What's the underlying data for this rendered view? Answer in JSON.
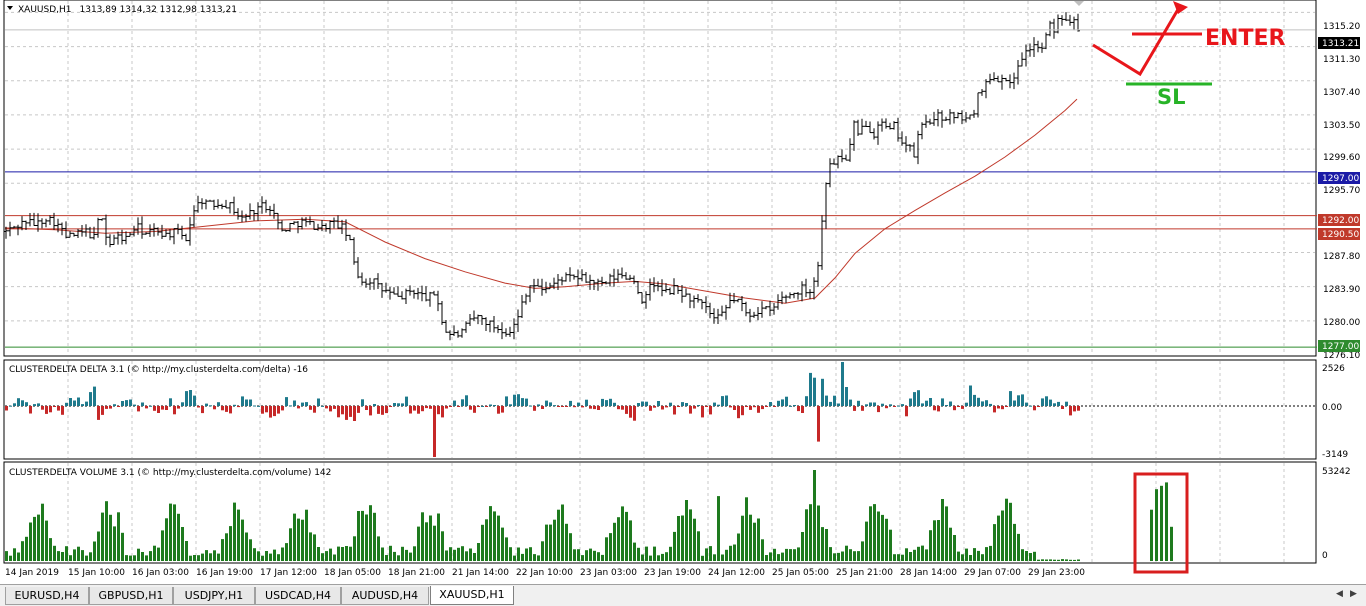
{
  "main_header": {
    "title": "XAUUSD,H1",
    "ohlc": "1313,89 1314,32 1312,98 1313,21"
  },
  "price_axis": {
    "ticks": [
      "1315.20",
      "1311.30",
      "1307.40",
      "1303.50",
      "1299.60",
      "1295.70",
      "1287.80",
      "1283.90",
      "1280.00",
      "1276.10"
    ],
    "current_price_label": "1313.21",
    "level_labels": [
      "1297.00",
      "1292.00",
      "1290.50",
      "1277.00"
    ]
  },
  "annotations": {
    "enter_text": "ENTER",
    "sl_text": "SL"
  },
  "delta_panel": {
    "header": "CLUSTERDELTA DELTA 3.1 (© http://my.clusterdelta.com/delta) -16",
    "axis_labels": [
      "2526",
      "0.00",
      "-3149"
    ]
  },
  "volume_panel": {
    "header": "CLUSTERDELTA VOLUME 3.1 (© http://my.clusterdelta.com/volume) 142",
    "axis_labels": [
      "53242",
      "0"
    ]
  },
  "time_axis": {
    "labels": [
      "14 Jan 2019",
      "15 Jan 10:00",
      "16 Jan 03:00",
      "16 Jan 19:00",
      "17 Jan 12:00",
      "18 Jan 05:00",
      "18 Jan 21:00",
      "21 Jan 14:00",
      "22 Jan 10:00",
      "23 Jan 03:00",
      "23 Jan 19:00",
      "24 Jan 12:00",
      "25 Jan 05:00",
      "25 Jan 21:00",
      "28 Jan 14:00",
      "29 Jan 07:00",
      "29 Jan 23:00"
    ]
  },
  "tabs": [
    {
      "label": "EURUSD,H4",
      "active": false
    },
    {
      "label": "GBPUSD,H1",
      "active": false
    },
    {
      "label": "USDJPY,H1",
      "active": false
    },
    {
      "label": "USDCAD,H4",
      "active": false
    },
    {
      "label": "AUDUSD,H4",
      "active": false
    },
    {
      "label": "XAUUSD,H1",
      "active": true
    }
  ],
  "colors": {
    "bull_delta": "#1f7a8c",
    "bear_delta": "#c62828",
    "volume": "#1e7a1e",
    "ma_line": "#c0392b",
    "level_blue": "#1a1aa6",
    "level_red": "#c0392b",
    "level_green": "#2e8b2e",
    "annotation_red": "#e8161b",
    "annotation_green": "#27b327",
    "box_red": "#d81e1e"
  },
  "chart_data": [
    {
      "type": "candlestick",
      "symbol": "XAUUSD",
      "timeframe": "H1",
      "ylim": [
        1276.1,
        1316.5
      ],
      "close_path": [
        [
          0,
          1290.2
        ],
        [
          10,
          1290.8
        ],
        [
          20,
          1291.4
        ],
        [
          30,
          1291.0
        ],
        [
          40,
          1291.8
        ],
        [
          50,
          1291.2
        ],
        [
          60,
          1289.6
        ],
        [
          70,
          1289.8
        ],
        [
          80,
          1290.2
        ],
        [
          88,
          1289.5
        ],
        [
          95,
          1292.6
        ],
        [
          102,
          1288.5
        ],
        [
          110,
          1289.6
        ],
        [
          120,
          1289.4
        ],
        [
          130,
          1290.8
        ],
        [
          140,
          1289.9
        ],
        [
          150,
          1290.4
        ],
        [
          160,
          1289.8
        ],
        [
          170,
          1290.2
        ],
        [
          180,
          1289.4
        ],
        [
          188,
          1292.8
        ],
        [
          196,
          1293.8
        ],
        [
          205,
          1293.2
        ],
        [
          215,
          1293.5
        ],
        [
          225,
          1293.1
        ],
        [
          235,
          1291.6
        ],
        [
          245,
          1292.4
        ],
        [
          255,
          1293.2
        ],
        [
          265,
          1293.0
        ],
        [
          275,
          1290.2
        ],
        [
          285,
          1291.0
        ],
        [
          295,
          1291.3
        ],
        [
          305,
          1291.0
        ],
        [
          315,
          1290.6
        ],
        [
          325,
          1291.2
        ],
        [
          335,
          1290.8
        ],
        [
          343,
          1289.4
        ],
        [
          350,
          1285.6
        ],
        [
          358,
          1284.3
        ],
        [
          366,
          1284.8
        ],
        [
          374,
          1283.6
        ],
        [
          382,
          1283.3
        ],
        [
          390,
          1282.6
        ],
        [
          398,
          1282.9
        ],
        [
          406,
          1283.5
        ],
        [
          414,
          1283.0
        ],
        [
          422,
          1282.6
        ],
        [
          430,
          1283.2
        ],
        [
          438,
          1278.9
        ],
        [
          446,
          1278.4
        ],
        [
          455,
          1278.5
        ],
        [
          463,
          1279.8
        ],
        [
          471,
          1280.5
        ],
        [
          479,
          1280.0
        ],
        [
          487,
          1279.4
        ],
        [
          495,
          1279.0
        ],
        [
          503,
          1278.8
        ],
        [
          511,
          1279.9
        ],
        [
          517,
          1282.6
        ],
        [
          525,
          1284.3
        ],
        [
          533,
          1283.6
        ],
        [
          541,
          1283.9
        ],
        [
          549,
          1284.2
        ],
        [
          557,
          1285.0
        ],
        [
          565,
          1284.8
        ],
        [
          573,
          1285.0
        ],
        [
          581,
          1284.6
        ],
        [
          589,
          1284.4
        ],
        [
          597,
          1284.0
        ],
        [
          605,
          1284.8
        ],
        [
          613,
          1285.2
        ],
        [
          621,
          1285.0
        ],
        [
          629,
          1284.7
        ],
        [
          637,
          1281.4
        ],
        [
          645,
          1284.6
        ],
        [
          653,
          1283.6
        ],
        [
          661,
          1283.2
        ],
        [
          669,
          1283.7
        ],
        [
          677,
          1283.0
        ],
        [
          685,
          1282.5
        ],
        [
          693,
          1282.0
        ],
        [
          701,
          1281.3
        ],
        [
          709,
          1280.0
        ],
        [
          717,
          1280.7
        ],
        [
          725,
          1282.5
        ],
        [
          733,
          1282.3
        ],
        [
          741,
          1280.6
        ],
        [
          749,
          1281.0
        ],
        [
          757,
          1281.4
        ],
        [
          765,
          1281.0
        ],
        [
          773,
          1282.4
        ],
        [
          781,
          1282.9
        ],
        [
          789,
          1283.2
        ],
        [
          797,
          1283.8
        ],
        [
          805,
          1283.4
        ],
        [
          813,
          1286.8
        ],
        [
          818,
          1294.3
        ],
        [
          823,
          1298.4
        ],
        [
          828,
          1297.6
        ],
        [
          833,
          1299.2
        ],
        [
          838,
          1298.0
        ],
        [
          843,
          1299.4
        ],
        [
          848,
          1302.4
        ],
        [
          853,
          1300.6
        ],
        [
          858,
          1303.0
        ],
        [
          863,
          1302.0
        ],
        [
          868,
          1301.4
        ],
        [
          873,
          1303.0
        ],
        [
          878,
          1302.1
        ],
        [
          883,
          1301.6
        ],
        [
          888,
          1302.2
        ],
        [
          893,
          1301.0
        ],
        [
          898,
          1300.2
        ],
        [
          903,
          1299.7
        ],
        [
          908,
          1298.9
        ],
        [
          913,
          1301.6
        ],
        [
          918,
          1302.6
        ],
        [
          923,
          1303.0
        ],
        [
          928,
          1302.6
        ],
        [
          933,
          1303.5
        ],
        [
          938,
          1303.0
        ],
        [
          943,
          1303.6
        ],
        [
          948,
          1303.0
        ],
        [
          953,
          1303.4
        ],
        [
          958,
          1303.2
        ],
        [
          963,
          1302.9
        ],
        [
          968,
          1304.0
        ],
        [
          973,
          1306.4
        ],
        [
          978,
          1306.8
        ],
        [
          983,
          1307.4
        ],
        [
          988,
          1308.0
        ],
        [
          993,
          1307.2
        ],
        [
          998,
          1308.6
        ],
        [
          1003,
          1306.6
        ],
        [
          1008,
          1307.8
        ],
        [
          1013,
          1309.8
        ],
        [
          1018,
          1310.4
        ],
        [
          1023,
          1311.0
        ],
        [
          1028,
          1311.6
        ],
        [
          1033,
          1310.9
        ],
        [
          1038,
          1311.4
        ],
        [
          1043,
          1313.8
        ],
        [
          1048,
          1313.2
        ],
        [
          1053,
          1314.6
        ],
        [
          1058,
          1315.0
        ],
        [
          1063,
          1314.2
        ],
        [
          1068,
          1314.8
        ],
        [
          1073,
          1313.2
        ]
      ],
      "moving_average": [
        [
          0,
          1290.6
        ],
        [
          50,
          1290.4
        ],
        [
          100,
          1290.0
        ],
        [
          150,
          1290.2
        ],
        [
          200,
          1290.8
        ],
        [
          250,
          1291.4
        ],
        [
          300,
          1291.6
        ],
        [
          340,
          1291.3
        ],
        [
          380,
          1289.0
        ],
        [
          420,
          1287.1
        ],
        [
          460,
          1285.6
        ],
        [
          500,
          1284.3
        ],
        [
          530,
          1283.7
        ],
        [
          560,
          1283.9
        ],
        [
          600,
          1284.3
        ],
        [
          630,
          1284.5
        ],
        [
          660,
          1284.2
        ],
        [
          700,
          1283.4
        ],
        [
          740,
          1282.6
        ],
        [
          780,
          1282.0
        ],
        [
          810,
          1282.6
        ],
        [
          830,
          1284.9
        ],
        [
          850,
          1287.7
        ],
        [
          880,
          1290.5
        ],
        [
          910,
          1292.6
        ],
        [
          940,
          1294.6
        ],
        [
          970,
          1296.5
        ],
        [
          1000,
          1298.7
        ],
        [
          1030,
          1301.2
        ],
        [
          1060,
          1304.0
        ],
        [
          1072,
          1305.3
        ]
      ],
      "horizontal_levels": [
        {
          "price": 1297.0,
          "color": "blue"
        },
        {
          "price": 1292.0,
          "color": "red"
        },
        {
          "price": 1290.5,
          "color": "red"
        },
        {
          "price": 1277.0,
          "color": "green"
        }
      ],
      "current_price": 1313.21
    },
    {
      "type": "bar",
      "title": "CLUSTERDELTA DELTA 3.1",
      "ylim": [
        -3149,
        2526
      ],
      "seed": 7
    },
    {
      "type": "bar",
      "title": "CLUSTERDELTA VOLUME 3.1",
      "ylim": [
        0,
        53242
      ],
      "seed": 13
    }
  ]
}
